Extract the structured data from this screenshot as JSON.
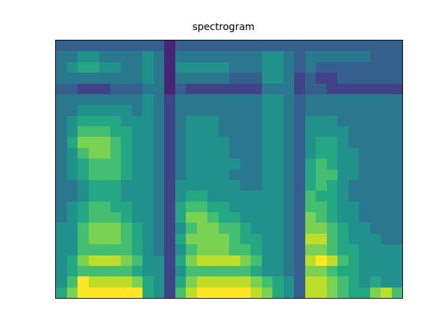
{
  "chart_data": {
    "type": "heatmap",
    "title": "spectrogram",
    "color": "Viridis",
    "tick_labels": false,
    "zlim": [
      0,
      10
    ],
    "cells": [
      [
        6,
        8,
        10,
        10,
        10,
        10,
        10,
        10,
        6,
        5,
        2,
        7,
        9,
        10,
        10,
        10,
        10,
        10,
        9,
        8,
        6,
        5,
        3,
        9,
        9,
        8,
        7,
        6,
        6,
        8,
        9,
        7
      ],
      [
        5,
        7,
        10,
        9,
        9,
        9,
        9,
        8,
        6,
        5,
        2,
        6,
        8,
        9,
        9,
        9,
        9,
        9,
        8,
        7,
        6,
        5,
        3,
        9,
        9,
        8,
        7,
        6,
        5,
        6,
        5,
        5
      ],
      [
        5,
        6,
        7,
        7,
        7,
        7,
        7,
        6,
        5,
        5,
        2,
        5,
        7,
        7,
        7,
        7,
        7,
        7,
        6,
        5,
        5,
        4,
        3,
        8,
        8,
        7,
        6,
        6,
        5,
        5,
        5,
        5
      ],
      [
        5,
        6,
        8,
        9,
        9,
        9,
        8,
        7,
        5,
        5,
        2,
        6,
        8,
        9,
        9,
        9,
        9,
        8,
        7,
        5,
        5,
        4,
        3,
        9,
        10,
        9,
        7,
        6,
        5,
        5,
        5,
        5
      ],
      [
        5,
        5,
        7,
        7,
        7,
        7,
        7,
        6,
        5,
        4,
        2,
        5,
        7,
        8,
        8,
        8,
        7,
        7,
        6,
        5,
        5,
        4,
        3,
        8,
        8,
        7,
        6,
        6,
        5,
        5,
        5,
        5
      ],
      [
        5,
        5,
        7,
        8,
        8,
        8,
        7,
        6,
        5,
        4,
        2,
        6,
        8,
        8,
        8,
        8,
        7,
        6,
        6,
        5,
        5,
        4,
        3,
        9,
        9,
        7,
        6,
        5,
        5,
        5,
        4,
        4
      ],
      [
        5,
        5,
        7,
        8,
        8,
        8,
        7,
        6,
        5,
        4,
        2,
        5,
        7,
        8,
        8,
        7,
        7,
        6,
        5,
        5,
        5,
        4,
        3,
        8,
        8,
        7,
        6,
        5,
        5,
        4,
        4,
        4
      ],
      [
        4,
        5,
        6,
        7,
        7,
        7,
        6,
        5,
        5,
        4,
        2,
        6,
        8,
        8,
        7,
        6,
        6,
        5,
        5,
        5,
        5,
        4,
        3,
        8,
        7,
        6,
        5,
        5,
        4,
        4,
        4,
        4
      ],
      [
        4,
        5,
        6,
        7,
        7,
        6,
        6,
        5,
        5,
        4,
        2,
        6,
        7,
        7,
        6,
        6,
        5,
        5,
        5,
        5,
        5,
        4,
        3,
        7,
        7,
        6,
        5,
        5,
        4,
        4,
        4,
        4
      ],
      [
        4,
        4,
        5,
        6,
        6,
        6,
        5,
        5,
        5,
        4,
        2,
        5,
        6,
        6,
        5,
        5,
        5,
        5,
        5,
        5,
        5,
        4,
        3,
        7,
        6,
        6,
        5,
        4,
        4,
        4,
        4,
        4
      ],
      [
        4,
        4,
        5,
        6,
        6,
        6,
        5,
        5,
        5,
        4,
        2,
        5,
        5,
        5,
        5,
        5,
        5,
        4,
        4,
        5,
        5,
        4,
        3,
        6,
        7,
        6,
        5,
        4,
        4,
        4,
        4,
        4
      ],
      [
        4,
        5,
        6,
        7,
        7,
        7,
        6,
        5,
        5,
        4,
        2,
        4,
        5,
        5,
        5,
        5,
        4,
        4,
        4,
        5,
        5,
        4,
        3,
        6,
        7,
        7,
        5,
        5,
        4,
        4,
        4,
        4
      ],
      [
        4,
        5,
        6,
        7,
        7,
        7,
        6,
        5,
        5,
        4,
        2,
        4,
        5,
        5,
        5,
        5,
        5,
        4,
        4,
        5,
        5,
        4,
        3,
        6,
        7,
        6,
        5,
        5,
        4,
        4,
        4,
        4
      ],
      [
        4,
        5,
        7,
        8,
        8,
        7,
        6,
        5,
        5,
        4,
        2,
        4,
        5,
        5,
        5,
        5,
        4,
        4,
        4,
        5,
        5,
        4,
        3,
        5,
        6,
        6,
        5,
        5,
        4,
        4,
        4,
        4
      ],
      [
        4,
        6,
        8,
        8,
        8,
        7,
        6,
        5,
        5,
        4,
        2,
        4,
        5,
        5,
        5,
        5,
        4,
        4,
        4,
        5,
        5,
        4,
        3,
        5,
        6,
        6,
        5,
        4,
        4,
        4,
        4,
        4
      ],
      [
        4,
        5,
        7,
        7,
        7,
        6,
        6,
        5,
        5,
        4,
        2,
        4,
        5,
        5,
        5,
        4,
        4,
        4,
        4,
        5,
        5,
        4,
        3,
        5,
        5,
        5,
        5,
        4,
        4,
        4,
        4,
        4
      ],
      [
        4,
        5,
        6,
        6,
        6,
        6,
        5,
        5,
        5,
        4,
        2,
        4,
        5,
        5,
        5,
        4,
        4,
        4,
        4,
        5,
        5,
        4,
        3,
        5,
        5,
        5,
        4,
        4,
        4,
        4,
        4,
        4
      ],
      [
        4,
        4,
        5,
        5,
        5,
        5,
        5,
        4,
        5,
        4,
        2,
        4,
        4,
        4,
        4,
        4,
        4,
        4,
        4,
        5,
        5,
        4,
        3,
        4,
        4,
        4,
        4,
        4,
        4,
        4,
        4,
        4
      ],
      [
        4,
        4,
        4,
        4,
        4,
        4,
        4,
        4,
        5,
        4,
        2,
        4,
        4,
        4,
        4,
        4,
        4,
        4,
        4,
        5,
        5,
        4,
        3,
        4,
        4,
        4,
        4,
        4,
        4,
        4,
        4,
        4
      ],
      [
        3,
        3,
        2,
        2,
        2,
        3,
        3,
        3,
        4,
        4,
        1,
        3,
        2,
        2,
        2,
        2,
        2,
        2,
        2,
        4,
        4,
        4,
        2,
        3,
        3,
        2,
        2,
        2,
        2,
        2,
        2,
        2
      ],
      [
        4,
        4,
        4,
        4,
        4,
        4,
        4,
        4,
        5,
        4,
        1,
        4,
        4,
        4,
        4,
        4,
        3,
        3,
        3,
        5,
        5,
        4,
        2,
        3,
        2,
        2,
        3,
        3,
        3,
        3,
        3,
        3
      ],
      [
        4,
        5,
        6,
        6,
        5,
        5,
        4,
        4,
        5,
        4,
        1,
        5,
        5,
        5,
        5,
        5,
        4,
        4,
        4,
        5,
        5,
        4,
        3,
        4,
        3,
        3,
        3,
        3,
        3,
        3,
        3,
        3
      ],
      [
        4,
        4,
        5,
        5,
        4,
        4,
        4,
        4,
        5,
        4,
        1,
        4,
        4,
        4,
        4,
        4,
        4,
        4,
        4,
        5,
        5,
        4,
        3,
        4,
        4,
        4,
        4,
        4,
        4,
        3,
        3,
        3
      ],
      [
        3,
        3,
        3,
        3,
        3,
        3,
        3,
        3,
        3,
        3,
        1,
        3,
        3,
        3,
        3,
        3,
        3,
        3,
        3,
        3,
        3,
        3,
        3,
        3,
        3,
        3,
        3,
        3,
        3,
        3,
        3,
        3
      ]
    ]
  }
}
